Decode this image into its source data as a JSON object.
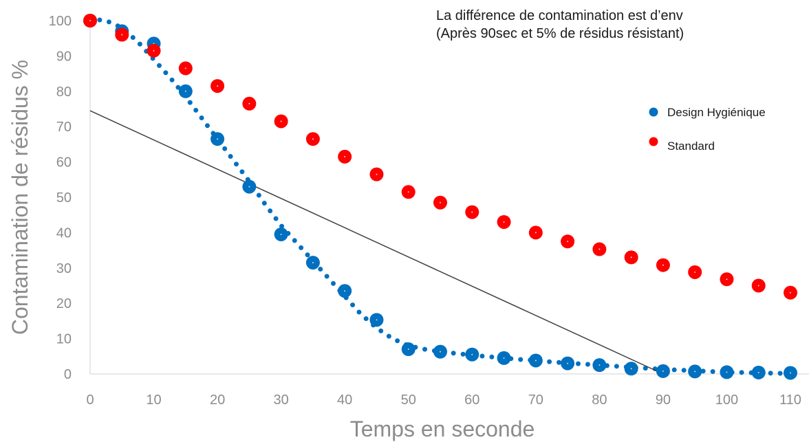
{
  "chart_data": {
    "type": "scatter",
    "title": "",
    "xlabel": "Temps en seconde",
    "ylabel": "Contamination de résidus %",
    "xlim": [
      0,
      110
    ],
    "ylim": [
      0,
      100
    ],
    "x_ticks": [
      "0",
      "10",
      "20",
      "30",
      "40",
      "50",
      "60",
      "70",
      "80",
      "90",
      "100",
      "110"
    ],
    "y_ticks": [
      "0",
      "10",
      "20",
      "30",
      "40",
      "50",
      "60",
      "70",
      "80",
      "90",
      "100"
    ],
    "grid": false,
    "legend_position": "right",
    "annotation": [
      "La différence de contamination est d’env",
      "(Après 90sec et 5% de résidus résistant)"
    ],
    "series": [
      {
        "name": "Design Hygiénique",
        "color": "#0070c0",
        "x": [
          0,
          5,
          10,
          15,
          20,
          25,
          30,
          35,
          40,
          45,
          50,
          55,
          60,
          65,
          70,
          75,
          80,
          85,
          90,
          95,
          100,
          105,
          110
        ],
        "y": [
          100,
          97,
          93.5,
          80,
          66.5,
          53,
          39.5,
          31.5,
          23.5,
          15.3,
          7,
          6.3,
          5.5,
          4.5,
          3.8,
          3,
          2.5,
          1.5,
          0.8,
          0.7,
          0.5,
          0.4,
          0.3
        ]
      },
      {
        "name": "Standard",
        "color": "#ff0000",
        "x": [
          0,
          5,
          10,
          15,
          20,
          25,
          30,
          35,
          40,
          45,
          50,
          55,
          60,
          65,
          70,
          75,
          80,
          85,
          90,
          95,
          100,
          105,
          110
        ],
        "y": [
          100,
          96,
          91.5,
          86.5,
          81.5,
          76.5,
          71.5,
          66.5,
          61.5,
          56.5,
          51.5,
          48.5,
          45.8,
          43,
          40,
          37.5,
          35.3,
          33,
          30.8,
          28.8,
          26.8,
          25,
          23
        ]
      }
    ],
    "trendlines": [
      {
        "type": "polynomial",
        "series": "Design Hygiénique",
        "style": "dotted",
        "color": "#0070c0",
        "x": [
          0,
          2.5,
          5,
          7.5,
          10,
          12.5,
          15,
          17.5,
          20,
          22.5,
          25,
          27.5,
          30,
          32.5,
          35,
          37.5,
          40,
          42.5,
          45,
          47.5,
          50,
          52.5,
          55,
          57.5,
          60,
          62.5,
          65,
          67.5,
          70,
          72.5,
          75,
          77.5,
          80,
          82.5,
          85,
          87.5,
          90,
          92.5,
          95,
          97.5,
          100,
          102.5,
          105,
          107.5,
          110
        ],
        "y": [
          100.5,
          100,
          98,
          94,
          89,
          84,
          78.5,
          72.5,
          66.5,
          60.5,
          54.5,
          48,
          42,
          37,
          32,
          27,
          22,
          17,
          13,
          10,
          8,
          7,
          6.3,
          5.8,
          5.3,
          4.9,
          4.5,
          4.1,
          3.8,
          3.4,
          3.1,
          2.8,
          2.5,
          2.2,
          1.9,
          1.6,
          1.3,
          1.1,
          0.9,
          0.7,
          0.5,
          0.4,
          0.3,
          0.2,
          0.1
        ]
      },
      {
        "type": "linear",
        "series": "Design Hygiénique",
        "style": "solid",
        "color": "#404040",
        "x": [
          0,
          90
        ],
        "y": [
          74.5,
          0
        ]
      }
    ]
  }
}
